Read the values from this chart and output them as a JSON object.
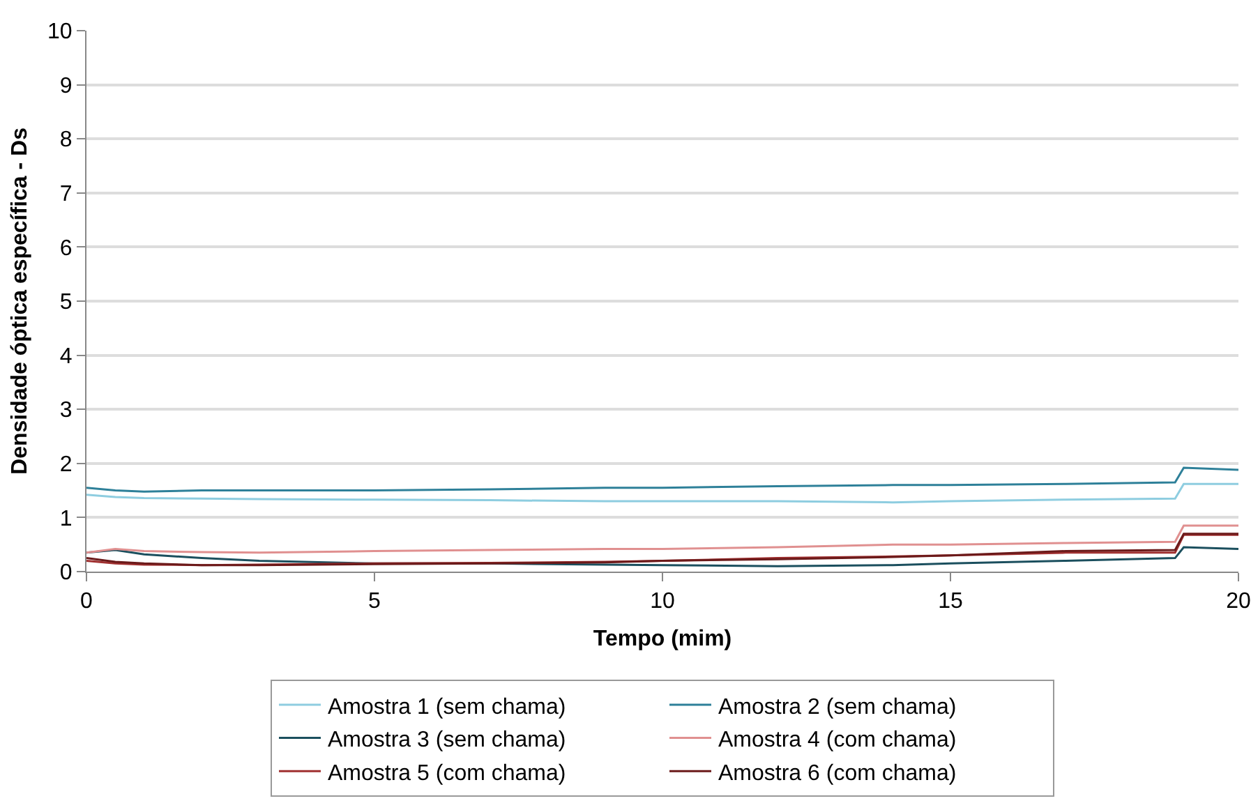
{
  "chart_data": {
    "type": "line",
    "xlabel": "Tempo (mim)",
    "ylabel": "Densidade óptica específica - Ds",
    "xlim": [
      0,
      20
    ],
    "ylim": [
      0,
      10
    ],
    "xticks": [
      0,
      5,
      10,
      15,
      20
    ],
    "yticks": [
      0,
      1,
      2,
      3,
      4,
      5,
      6,
      7,
      8,
      9,
      10
    ],
    "grid": "y",
    "legend": "bottom",
    "x": [
      0,
      0.5,
      1,
      2,
      3,
      5,
      7,
      9,
      10,
      12,
      14,
      15,
      17,
      18.9,
      19.05,
      20
    ],
    "series": [
      {
        "name": "Amostra 1 (sem chama)",
        "color": "#8ecde0",
        "values": [
          1.42,
          1.38,
          1.36,
          1.35,
          1.34,
          1.33,
          1.32,
          1.3,
          1.3,
          1.3,
          1.28,
          1.3,
          1.33,
          1.35,
          1.62,
          1.62
        ]
      },
      {
        "name": "Amostra 2 (sem chama)",
        "color": "#2e8099",
        "values": [
          1.55,
          1.5,
          1.48,
          1.5,
          1.5,
          1.5,
          1.52,
          1.55,
          1.55,
          1.58,
          1.6,
          1.6,
          1.62,
          1.65,
          1.92,
          1.88
        ]
      },
      {
        "name": "Amostra 3 (sem chama)",
        "color": "#1b4f5e",
        "values": [
          0.35,
          0.4,
          0.32,
          0.25,
          0.2,
          0.15,
          0.15,
          0.13,
          0.12,
          0.1,
          0.12,
          0.15,
          0.2,
          0.25,
          0.45,
          0.42
        ]
      },
      {
        "name": "Amostra 4 (com chama)",
        "color": "#e09090",
        "values": [
          0.35,
          0.42,
          0.38,
          0.36,
          0.35,
          0.38,
          0.4,
          0.42,
          0.42,
          0.45,
          0.5,
          0.5,
          0.53,
          0.55,
          0.85,
          0.85
        ]
      },
      {
        "name": "Amostra 5 (com chama)",
        "color": "#a03030",
        "values": [
          0.2,
          0.15,
          0.13,
          0.12,
          0.13,
          0.15,
          0.16,
          0.18,
          0.2,
          0.25,
          0.28,
          0.3,
          0.35,
          0.35,
          0.68,
          0.68
        ]
      },
      {
        "name": "Amostra 6 (com chama)",
        "color": "#6b1a1a",
        "values": [
          0.25,
          0.18,
          0.15,
          0.12,
          0.12,
          0.14,
          0.15,
          0.17,
          0.2,
          0.23,
          0.27,
          0.3,
          0.38,
          0.4,
          0.7,
          0.7
        ]
      }
    ]
  }
}
